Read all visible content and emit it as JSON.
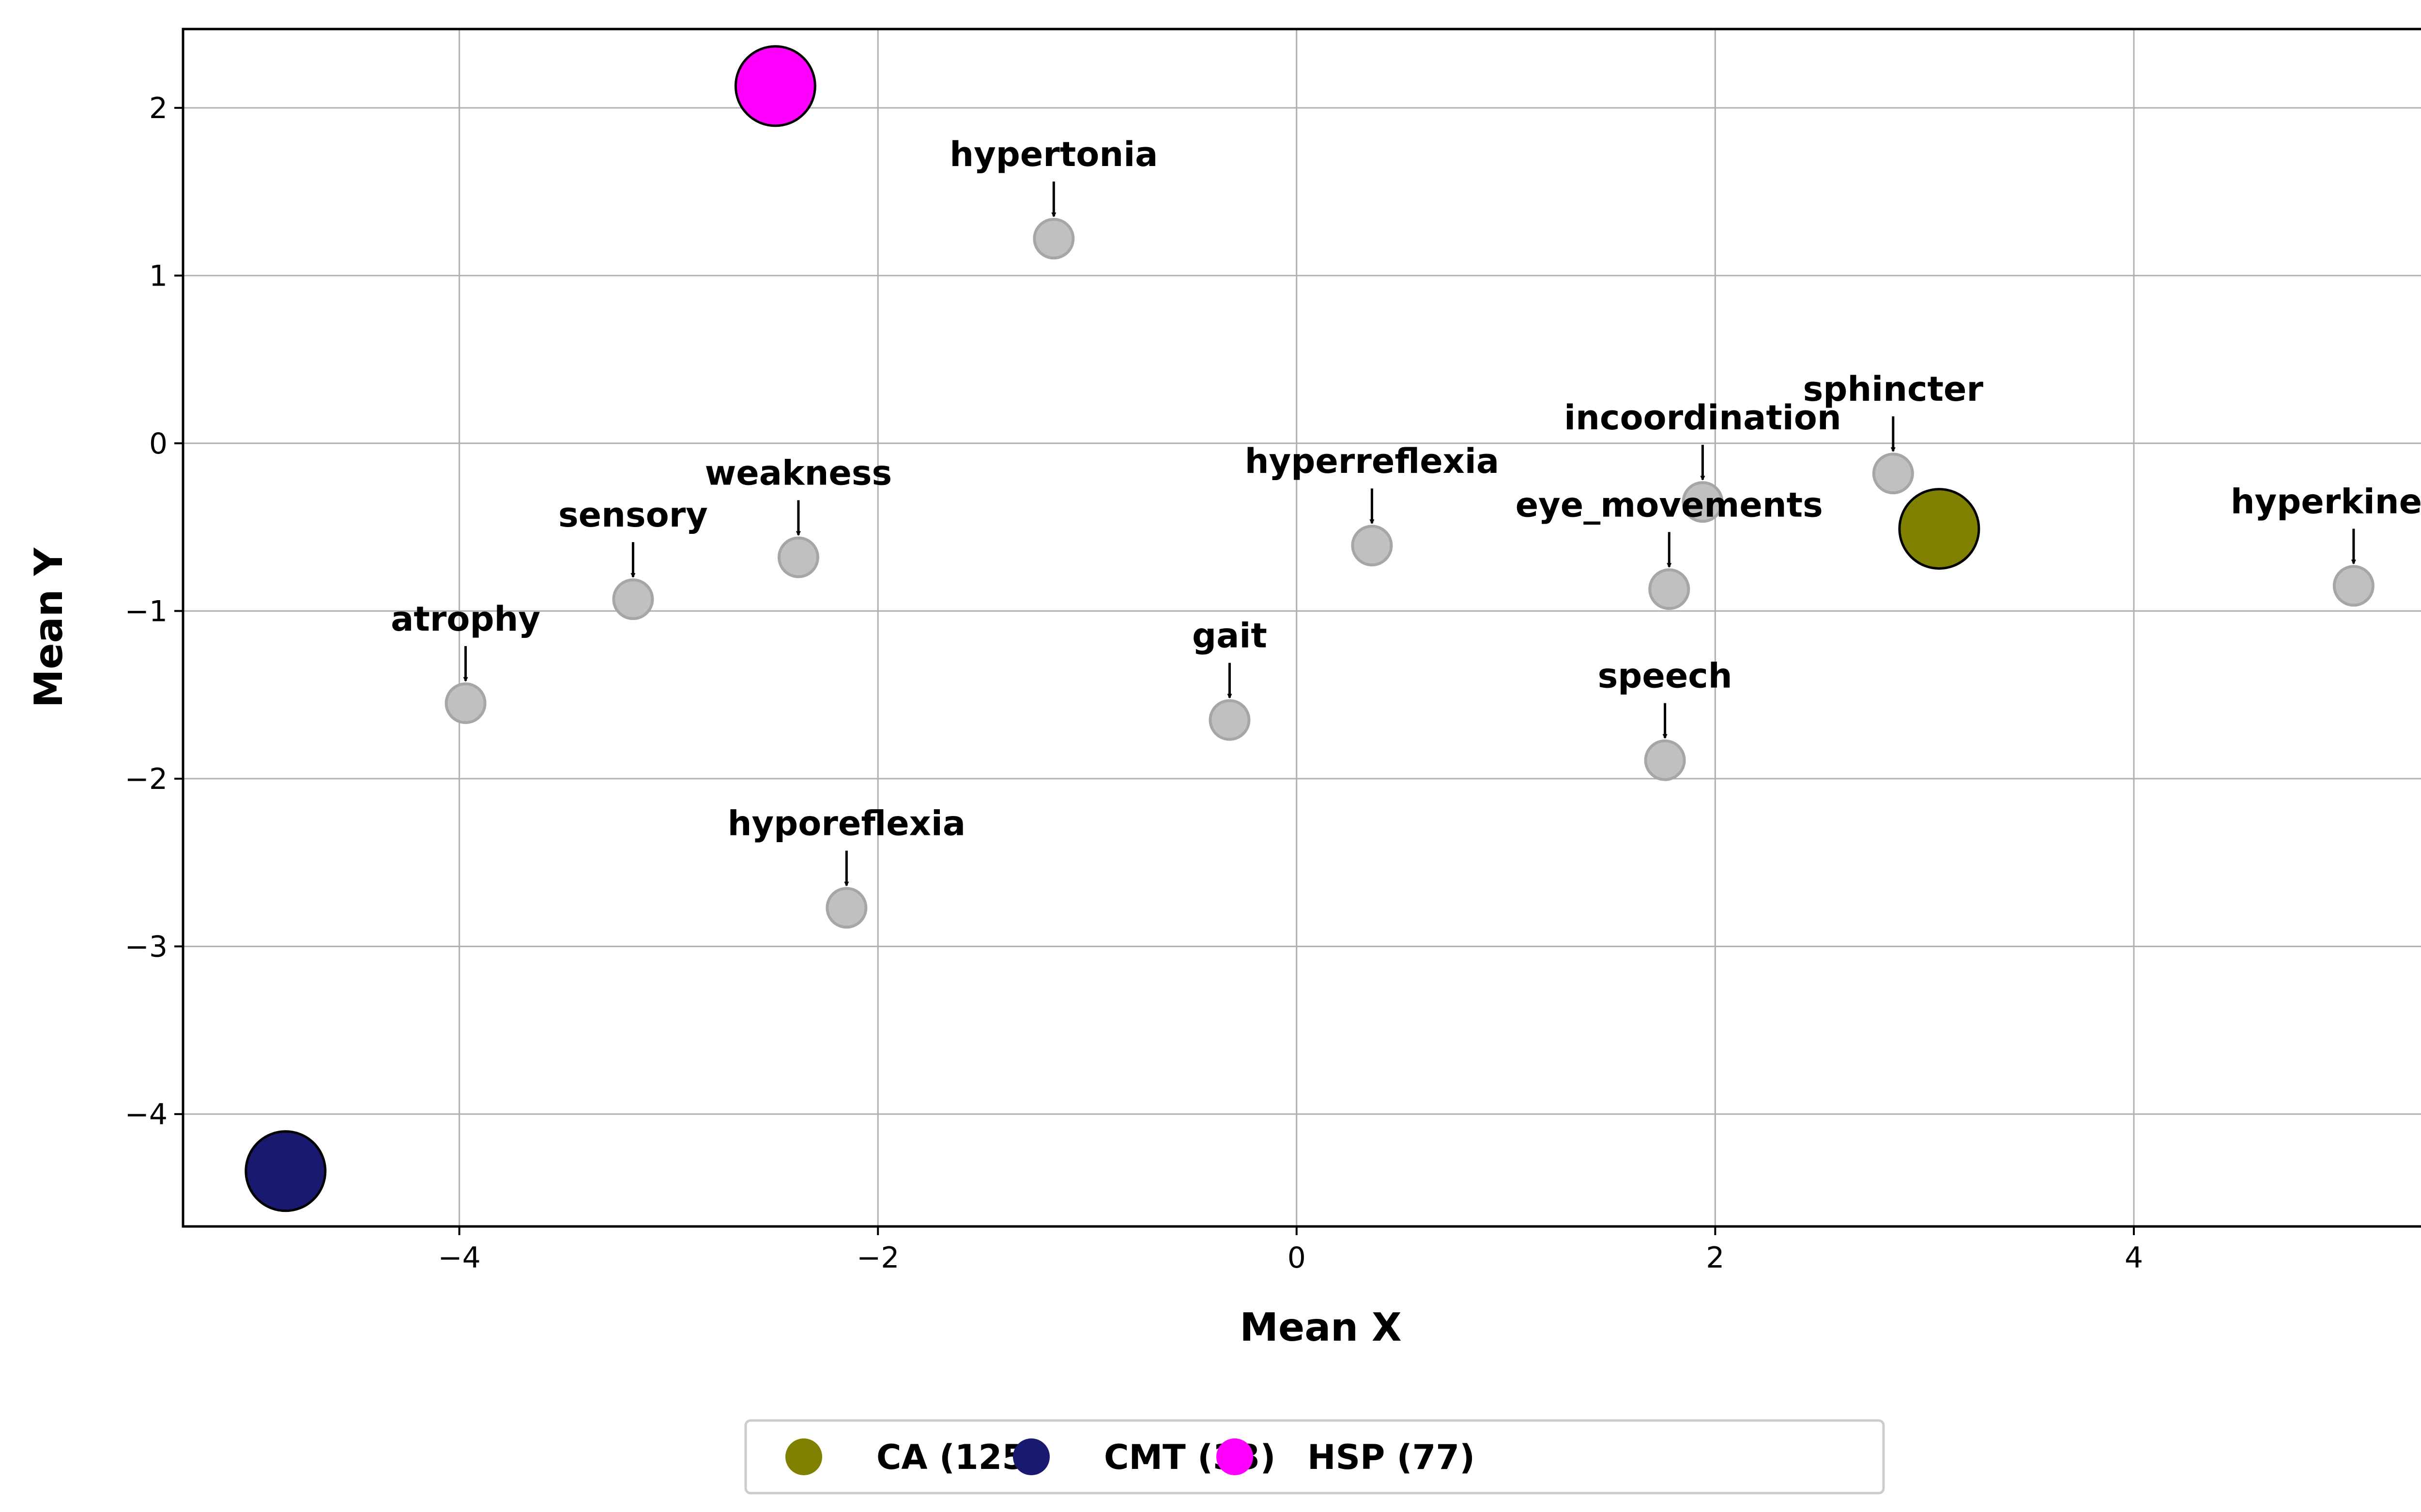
{
  "chart_data": {
    "type": "scatter",
    "xlabel": "Mean X",
    "ylabel": "Mean Y",
    "xlim": [
      -5.32,
      5.55
    ],
    "ylim": [
      -4.67,
      2.47
    ],
    "xticks": [
      -4,
      -2,
      0,
      2,
      4
    ],
    "yticks": [
      -4,
      -3,
      -2,
      -1,
      0,
      1,
      2
    ],
    "grid": true,
    "legend_position": "bottom-center",
    "symptoms": [
      {
        "label": "hypertonia",
        "x": -1.16,
        "y": 1.22
      },
      {
        "label": "sphincter",
        "x": 2.85,
        "y": -0.18
      },
      {
        "label": "incoordination",
        "x": 1.94,
        "y": -0.35
      },
      {
        "label": "hyperreflexia",
        "x": 0.36,
        "y": -0.61
      },
      {
        "label": "eye_movements",
        "x": 1.78,
        "y": -0.87
      },
      {
        "label": "hyperkinesia",
        "x": 5.05,
        "y": -0.85
      },
      {
        "label": "weakness",
        "x": -2.38,
        "y": -0.68
      },
      {
        "label": "sensory",
        "x": -3.17,
        "y": -0.93
      },
      {
        "label": "atrophy",
        "x": -3.97,
        "y": -1.55
      },
      {
        "label": "gait",
        "x": -0.32,
        "y": -1.65
      },
      {
        "label": "speech",
        "x": 1.76,
        "y": -1.89
      },
      {
        "label": "hyporeflexia",
        "x": -2.15,
        "y": -2.77
      }
    ],
    "groups": [
      {
        "name": "CA (125)",
        "x": 3.07,
        "y": -0.51,
        "color": "#808000"
      },
      {
        "name": "CMT (33)",
        "x": -4.83,
        "y": -4.34,
        "color": "#191970"
      },
      {
        "name": "HSP (77)",
        "x": -2.49,
        "y": 2.13,
        "color": "#ff00ff"
      }
    ]
  }
}
